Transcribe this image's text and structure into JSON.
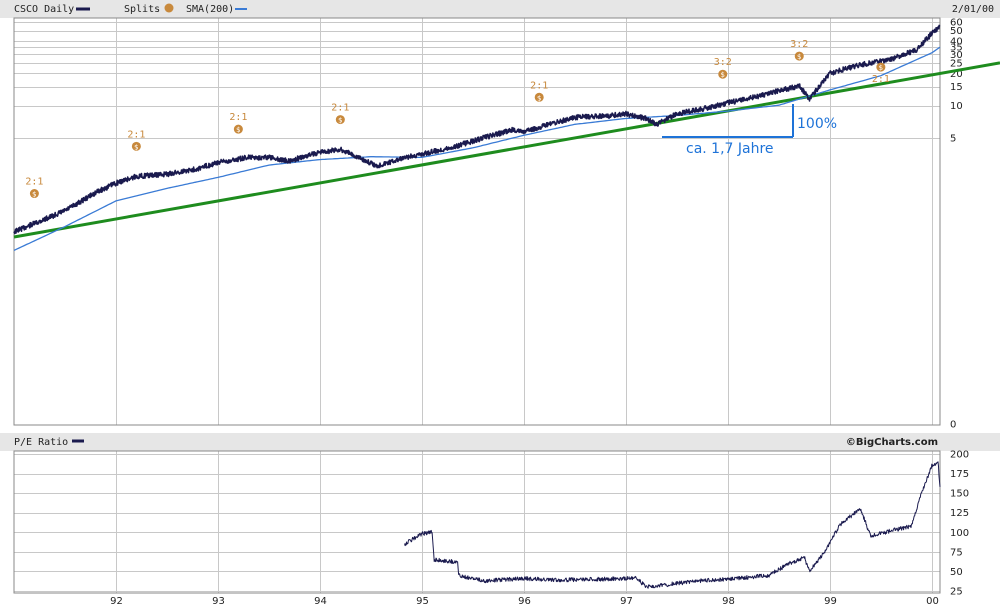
{
  "price_panel": {
    "legend_ticker": "CSCO Daily",
    "legend_splits": "Splits",
    "legend_sma": "SMA(200)",
    "date_label": "2/01/00"
  },
  "pe_panel": {
    "legend": "P/E Ratio",
    "credit": "©BigCharts.com"
  },
  "annotations": {
    "gain_label": "100%",
    "period_label": "ca. 1,7 Jahre"
  },
  "split_icon_glyph": "$",
  "colors": {
    "price_line": "#1a1a4e",
    "sma_line": "#3a7bd5",
    "trend_line": "#1e8c1e",
    "split_marker": "#c8893c",
    "annotation": "#1e73d8",
    "grid": "#c8c8c8",
    "panel_header": "#e6e6e6"
  },
  "chart_data": [
    {
      "type": "line",
      "scale": "log",
      "x_ticks": [
        "92",
        "93",
        "94",
        "95",
        "96",
        "97",
        "98",
        "99",
        "00"
      ],
      "y_ticks": [
        0,
        5,
        10,
        15,
        20,
        25,
        30,
        35,
        40,
        50,
        60
      ],
      "ylim": [
        0,
        60
      ],
      "series": [
        {
          "name": "CSCO Daily",
          "points": [
            [
              1991.0,
              0.67
            ],
            [
              1991.2,
              0.8
            ],
            [
              1991.5,
              1.05
            ],
            [
              1991.8,
              1.55
            ],
            [
              1992.0,
              1.9
            ],
            [
              1992.2,
              2.2
            ],
            [
              1992.5,
              2.3
            ],
            [
              1992.8,
              2.6
            ],
            [
              1993.0,
              2.95
            ],
            [
              1993.3,
              3.3
            ],
            [
              1993.5,
              3.3
            ],
            [
              1993.7,
              3.05
            ],
            [
              1994.0,
              3.7
            ],
            [
              1994.2,
              3.9
            ],
            [
              1994.35,
              3.4
            ],
            [
              1994.55,
              2.75
            ],
            [
              1994.8,
              3.2
            ],
            [
              1995.0,
              3.55
            ],
            [
              1995.3,
              4.1
            ],
            [
              1995.6,
              5.0
            ],
            [
              1995.9,
              6.0
            ],
            [
              1996.0,
              5.7
            ],
            [
              1996.2,
              6.5
            ],
            [
              1996.5,
              7.8
            ],
            [
              1996.8,
              8.0
            ],
            [
              1997.0,
              8.4
            ],
            [
              1997.2,
              7.6
            ],
            [
              1997.3,
              6.7
            ],
            [
              1997.5,
              8.4
            ],
            [
              1997.8,
              9.5
            ],
            [
              1998.0,
              10.6
            ],
            [
              1998.3,
              12.3
            ],
            [
              1998.5,
              13.8
            ],
            [
              1998.7,
              15.2
            ],
            [
              1998.8,
              11.6
            ],
            [
              1999.0,
              20.0
            ],
            [
              1999.3,
              24.0
            ],
            [
              1999.6,
              27.0
            ],
            [
              1999.85,
              33.0
            ],
            [
              2000.0,
              47.0
            ],
            [
              2000.08,
              55.0
            ]
          ]
        },
        {
          "name": "SMA(200)",
          "points": [
            [
              1991.0,
              0.45
            ],
            [
              1991.5,
              0.75
            ],
            [
              1992.0,
              1.3
            ],
            [
              1992.5,
              1.7
            ],
            [
              1993.0,
              2.15
            ],
            [
              1993.5,
              2.8
            ],
            [
              1994.0,
              3.15
            ],
            [
              1994.5,
              3.35
            ],
            [
              1995.0,
              3.3
            ],
            [
              1995.5,
              4.05
            ],
            [
              1996.0,
              5.3
            ],
            [
              1996.5,
              6.7
            ],
            [
              1997.0,
              7.6
            ],
            [
              1997.5,
              8.1
            ],
            [
              1998.0,
              8.9
            ],
            [
              1998.5,
              10.1
            ],
            [
              1999.0,
              14.0
            ],
            [
              1999.5,
              19.0
            ],
            [
              2000.0,
              31.0
            ],
            [
              2000.08,
              35.0
            ]
          ]
        }
      ],
      "trendline": [
        [
          1991.0,
          0.6
        ],
        [
          2000.7,
          25.0
        ]
      ],
      "splits": [
        {
          "x": 1991.2,
          "ratio": "2:1"
        },
        {
          "x": 1992.2,
          "ratio": "2:1"
        },
        {
          "x": 1993.2,
          "ratio": "2:1"
        },
        {
          "x": 1994.2,
          "ratio": "2:1"
        },
        {
          "x": 1996.15,
          "ratio": "2:1"
        },
        {
          "x": 1997.95,
          "ratio": "3:2"
        },
        {
          "x": 1998.7,
          "ratio": "3:2"
        },
        {
          "x": 1999.5,
          "ratio": "2:1"
        }
      ]
    },
    {
      "type": "line",
      "y_ticks": [
        25,
        50,
        75,
        100,
        125,
        150,
        175,
        200
      ],
      "ylim": [
        25,
        200
      ],
      "series": [
        {
          "name": "P/E Ratio",
          "points": [
            [
              1994.83,
              85
            ],
            [
              1995.0,
              98
            ],
            [
              1995.1,
              100
            ],
            [
              1995.12,
              65
            ],
            [
              1995.35,
              62
            ],
            [
              1995.36,
              45
            ],
            [
              1995.6,
              38
            ],
            [
              1996.0,
              41
            ],
            [
              1996.3,
              39
            ],
            [
              1996.7,
              40
            ],
            [
              1997.0,
              41
            ],
            [
              1997.1,
              42
            ],
            [
              1997.2,
              30
            ],
            [
              1997.4,
              33
            ],
            [
              1997.7,
              38
            ],
            [
              1998.0,
              40
            ],
            [
              1998.4,
              45
            ],
            [
              1998.6,
              60
            ],
            [
              1998.75,
              68
            ],
            [
              1998.8,
              50
            ],
            [
              1998.95,
              75
            ],
            [
              1999.1,
              110
            ],
            [
              1999.3,
              130
            ],
            [
              1999.4,
              95
            ],
            [
              1999.6,
              102
            ],
            [
              1999.8,
              108
            ],
            [
              1999.9,
              150
            ],
            [
              2000.0,
              185
            ],
            [
              2000.06,
              190
            ],
            [
              2000.08,
              158
            ]
          ]
        }
      ]
    }
  ]
}
